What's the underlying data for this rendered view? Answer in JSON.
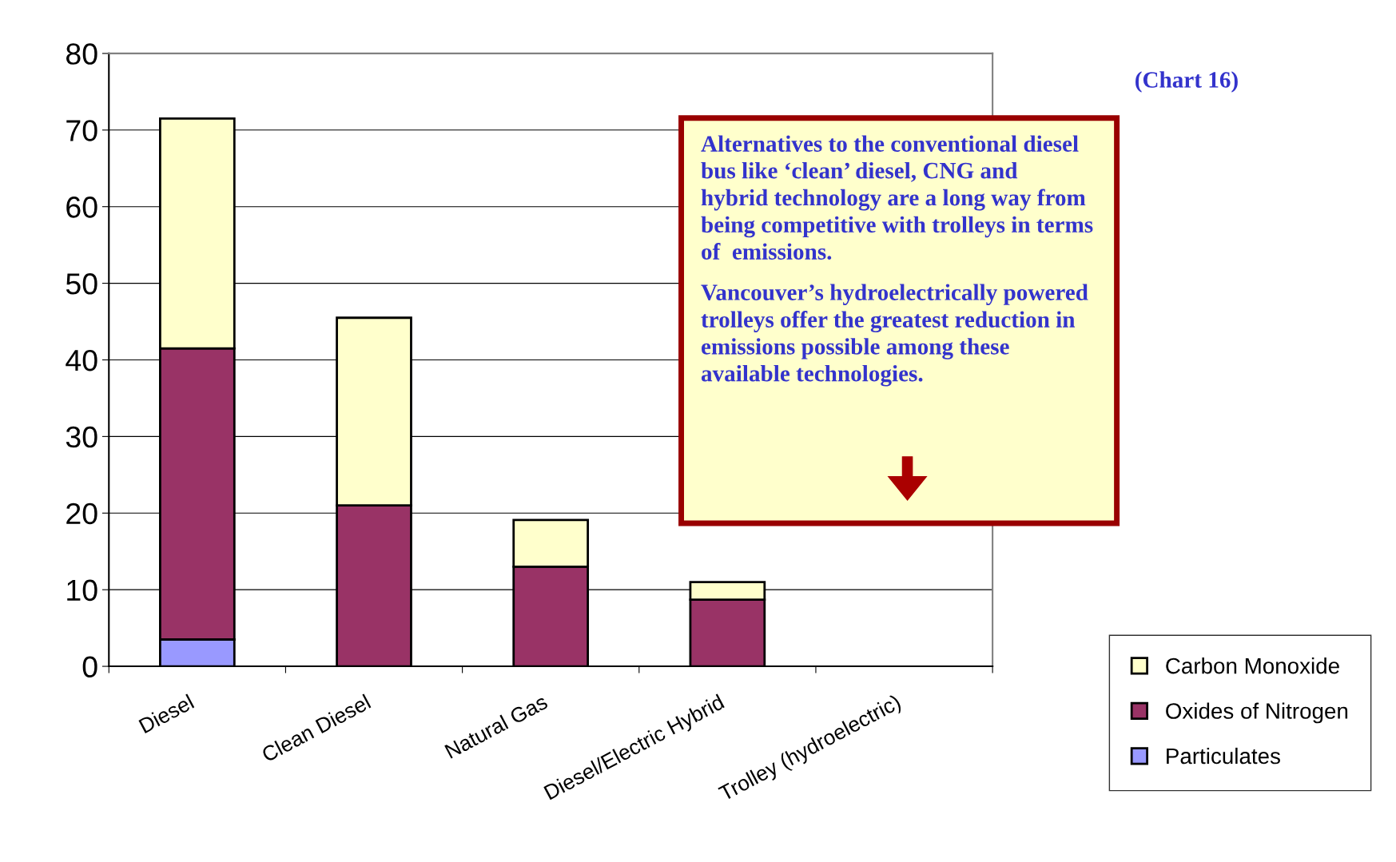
{
  "chart_data": {
    "type": "bar",
    "stacked": true,
    "categories": [
      "Diesel",
      "Clean Diesel",
      "Natural Gas",
      "Diesel/Electric Hybrid",
      "Trolley (hydroelectric)"
    ],
    "series": [
      {
        "name": "Particulates",
        "color": "#9999ff",
        "values": [
          3.5,
          null,
          0,
          null,
          0
        ]
      },
      {
        "name": "Oxides of Nitrogen",
        "color": "#993366",
        "values": [
          38,
          21,
          13,
          8.7,
          0
        ]
      },
      {
        "name": "Carbon Monoxide",
        "color": "#ffffcc",
        "values": [
          30,
          24.5,
          6.1,
          2.3,
          0
        ]
      }
    ],
    "ylim": [
      0,
      80
    ],
    "yticks": [
      0,
      10,
      20,
      30,
      40,
      50,
      60,
      70,
      80
    ],
    "grid": "y",
    "legend": "bottom right",
    "annotations": [
      "(Chart 16)",
      "Alternatives to the conventional diesel bus like ‘clean’ diesel, CNG and  hybrid technology are a long way from being competitive with trolleys in terms of  emissions.",
      "Vancouver’s hydroelectrically powered trolleys offer the greatest reduction in emissions possible among these available technologies."
    ]
  }
}
